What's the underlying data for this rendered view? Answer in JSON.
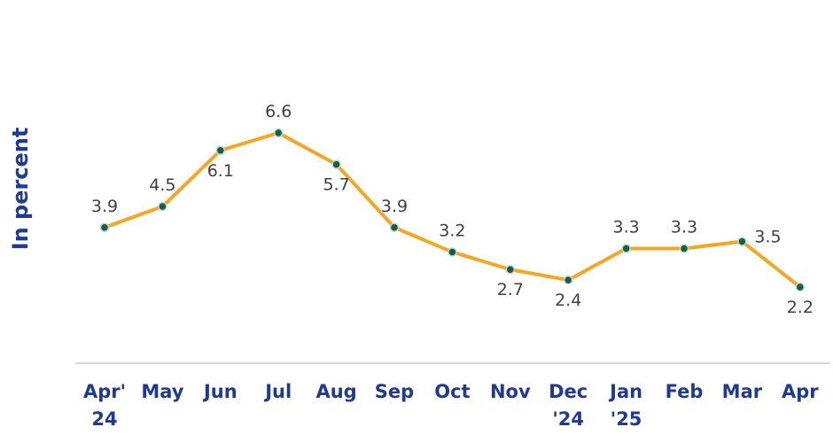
{
  "chart_data": {
    "type": "line",
    "ylabel": "In percent",
    "categories": [
      [
        "Apr'",
        "24"
      ],
      [
        "May"
      ],
      [
        "Jun"
      ],
      [
        "Jul"
      ],
      [
        "Aug"
      ],
      [
        "Sep"
      ],
      [
        "Oct"
      ],
      [
        "Nov"
      ],
      [
        "Dec",
        "'24"
      ],
      [
        "Jan",
        "'25"
      ],
      [
        "Feb"
      ],
      [
        "Mar"
      ],
      [
        "Apr"
      ]
    ],
    "values": [
      3.9,
      4.5,
      6.1,
      6.6,
      5.7,
      3.9,
      3.2,
      2.7,
      2.4,
      3.3,
      3.3,
      3.5,
      2.2
    ],
    "label_positions": [
      "above",
      "above",
      "below",
      "above",
      "below",
      "above",
      "above",
      "below",
      "below",
      "above",
      "above",
      "right",
      "below"
    ],
    "grid": false,
    "colors": {
      "line": "#f5a623",
      "marker": "#1a5c4a",
      "marker_edge": "#b8d8c8",
      "axis_label": "#1f3a93",
      "data_label": "#404040",
      "baseline": "#d9d9d9"
    }
  }
}
